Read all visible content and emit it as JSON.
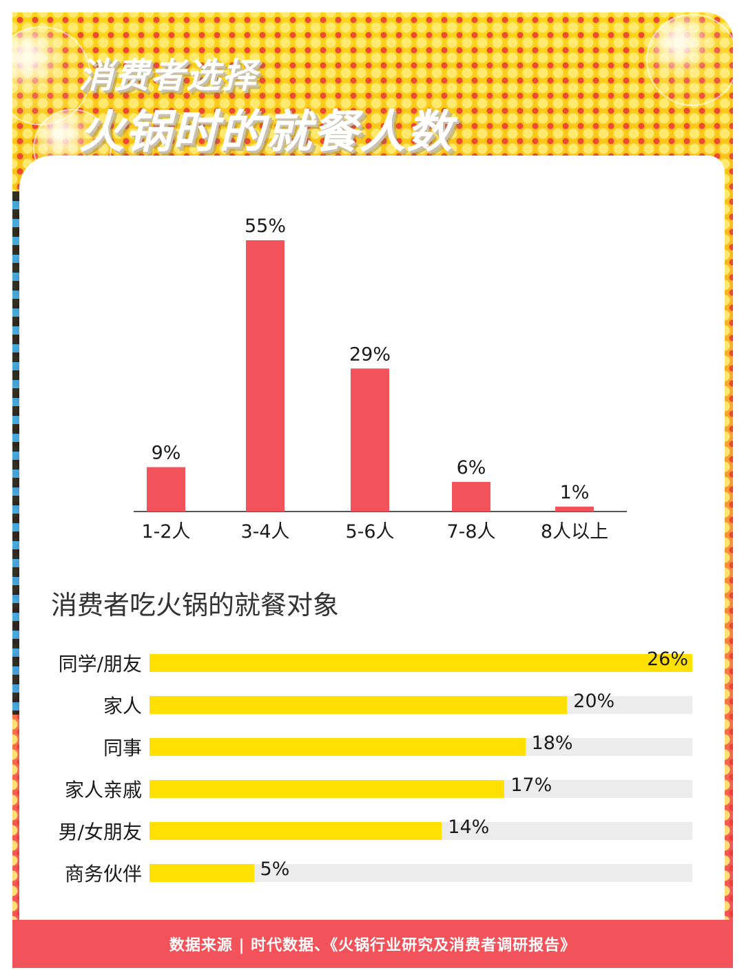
{
  "title": {
    "line1": "消费者选择",
    "line2": "火锅时的就餐人数"
  },
  "colors": {
    "bar": "#f2535b",
    "hbar": "#ffe000",
    "track": "#ececec",
    "footer": "#f2535b"
  },
  "chart_data": [
    {
      "type": "bar",
      "title": "",
      "categories": [
        "1-2人",
        "3-4人",
        "5-6人",
        "7-8人",
        "8人以上"
      ],
      "values": [
        9,
        55,
        29,
        6,
        1
      ],
      "value_labels": [
        "9%",
        "55%",
        "29%",
        "6%",
        "1%"
      ],
      "ylim": [
        0,
        55
      ],
      "grid": false
    },
    {
      "type": "bar",
      "orientation": "horizontal",
      "title": "消费者吃火锅的就餐对象",
      "categories": [
        "同学/朋友",
        "家人",
        "同事",
        "家人亲戚",
        "男/女朋友",
        "商务伙伴"
      ],
      "values": [
        26,
        20,
        18,
        17,
        14,
        5
      ],
      "value_labels": [
        "26%",
        "20%",
        "18%",
        "17%",
        "14%",
        "5%"
      ],
      "xlim": [
        0,
        26
      ],
      "grid": false
    }
  ],
  "footer": {
    "source": "数据来源 | 时代数据、《火锅行业研究及消费者调研报告》"
  }
}
